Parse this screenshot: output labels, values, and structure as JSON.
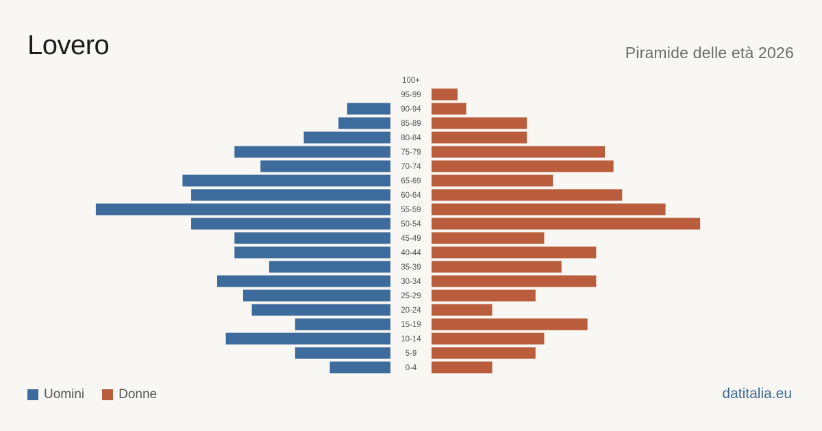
{
  "header": {
    "title": "Lovero",
    "subtitle": "Piramide delle età 2026"
  },
  "legend": {
    "men_label": "Uomini",
    "women_label": "Donne"
  },
  "brand": "datitalia.eu",
  "colors": {
    "men": "#3d6b9c",
    "women": "#b95d3d",
    "background": "#f9f7f3"
  },
  "chart_data": {
    "type": "bar",
    "orientation": "horizontal-pyramid",
    "categories": [
      "100+",
      "95-99",
      "90-94",
      "85-89",
      "80-84",
      "75-79",
      "70-74",
      "65-69",
      "60-64",
      "55-59",
      "50-54",
      "45-49",
      "40-44",
      "35-39",
      "30-34",
      "25-29",
      "20-24",
      "15-19",
      "10-14",
      "5-9",
      "0-4"
    ],
    "series": [
      {
        "name": "Uomini",
        "values": [
          0,
          0,
          5,
          6,
          10,
          18,
          15,
          24,
          23,
          34,
          23,
          18,
          18,
          14,
          20,
          17,
          16,
          11,
          19,
          11,
          7
        ]
      },
      {
        "name": "Donne",
        "values": [
          0,
          3,
          4,
          11,
          11,
          20,
          21,
          14,
          22,
          27,
          31,
          13,
          19,
          15,
          19,
          12,
          7,
          18,
          13,
          12,
          7
        ]
      }
    ],
    "grid": false,
    "legend_position": "bottom-left"
  }
}
